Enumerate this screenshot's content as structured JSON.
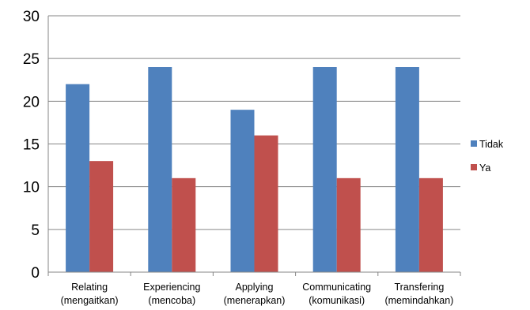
{
  "chart_data": {
    "type": "bar",
    "categories": [
      [
        "Relating",
        "(mengaitkan)"
      ],
      [
        "Experiencing",
        "(mencoba)"
      ],
      [
        "Applying",
        "(menerapkan)"
      ],
      [
        "Communicating",
        "(komunikasi)"
      ],
      [
        "Transfering",
        "(memindahkan)"
      ]
    ],
    "series": [
      {
        "name": "Tidak",
        "values": [
          22,
          24,
          19,
          24,
          24
        ],
        "color": "#4f81bd"
      },
      {
        "name": "Ya",
        "values": [
          13,
          11,
          16,
          11,
          11
        ],
        "color": "#c0504d"
      }
    ],
    "ylim": [
      0,
      30
    ],
    "yticks": [
      0,
      5,
      10,
      15,
      20,
      25,
      30
    ],
    "grid": true,
    "legend_position": "right"
  }
}
